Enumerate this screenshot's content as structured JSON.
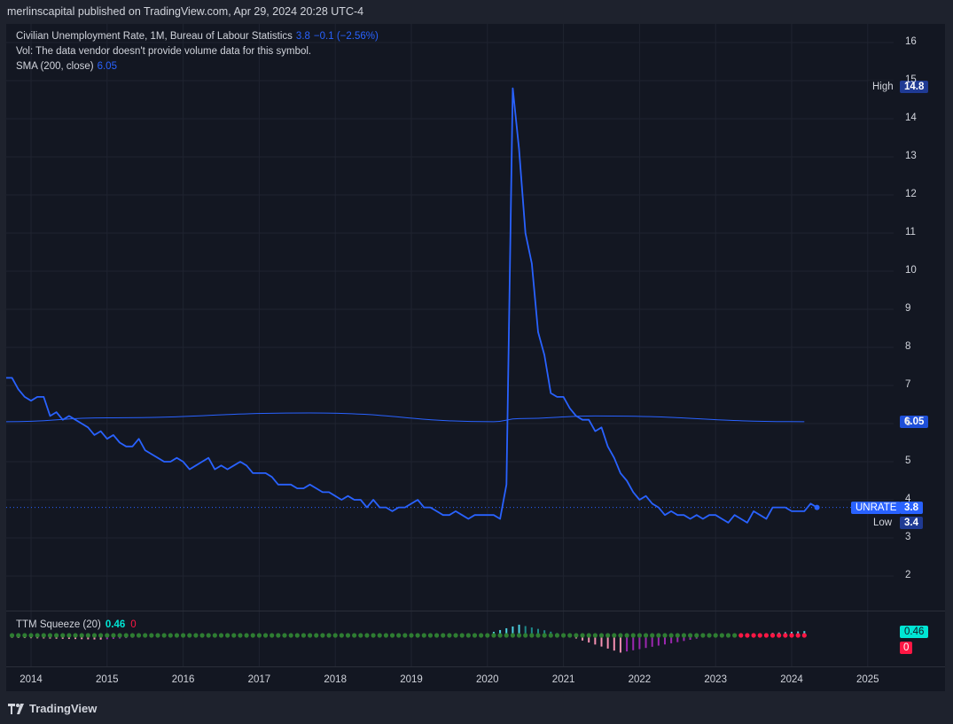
{
  "header": {
    "published": "merlinscapital published on TradingView.com, Apr 29, 2024 20:28 UTC-4"
  },
  "legend": {
    "title": "Civilian Unemployment Rate, 1M, Bureau of Labour Statistics",
    "last_value": "3.8",
    "change": "−0.1 (−2.56%)",
    "vol_note": "Vol: The data vendor doesn't provide volume data for this symbol.",
    "sma_label": "SMA (200, close)",
    "sma_value": "6.05",
    "ttm_label": "TTM Squeeze (20)",
    "ttm_value": "0.46",
    "ttm_value2": "0"
  },
  "tags": {
    "high_label": "High",
    "high_value": "14.8",
    "sma_value": "6.05",
    "symbol": "UNRATE",
    "symbol_value": "3.8",
    "low_label": "Low",
    "low_value": "3.4",
    "ttm_value": "0.46",
    "ttm_zero": "0"
  },
  "footer": {
    "brand": "TradingView"
  },
  "colors": {
    "line": "#2962ff",
    "background": "#131722",
    "grid": "#1f2330",
    "squeeze_on": "#ff1744",
    "squeeze_off": "#1b5e20",
    "mom_up": "#26a69a",
    "mom_down": "#e040fb"
  },
  "chart_data": {
    "type": "line",
    "title": "Civilian Unemployment Rate, 1M, Bureau of Labour Statistics",
    "ylim": [
      1,
      16.5
    ],
    "yticks": [
      2,
      3,
      4,
      5,
      6,
      7,
      8,
      9,
      10,
      11,
      12,
      13,
      14,
      15,
      16
    ],
    "xticks": [
      "2014",
      "2015",
      "2016",
      "2017",
      "2018",
      "2019",
      "2020",
      "2021",
      "2022",
      "2023",
      "2024",
      "2025"
    ],
    "grid": true,
    "series": [
      {
        "name": "UNRATE",
        "start": "2013-09",
        "frequency": "monthly",
        "values": [
          7.2,
          7.2,
          6.9,
          6.7,
          6.6,
          6.7,
          6.7,
          6.2,
          6.3,
          6.1,
          6.2,
          6.1,
          6.0,
          5.9,
          5.7,
          5.8,
          5.6,
          5.7,
          5.5,
          5.4,
          5.4,
          5.6,
          5.3,
          5.2,
          5.1,
          5.0,
          5.0,
          5.1,
          5.0,
          4.8,
          4.9,
          5.0,
          5.1,
          4.8,
          4.9,
          4.8,
          4.9,
          5.0,
          4.9,
          4.7,
          4.7,
          4.7,
          4.6,
          4.4,
          4.4,
          4.4,
          4.3,
          4.3,
          4.4,
          4.3,
          4.2,
          4.2,
          4.1,
          4.0,
          4.1,
          4.0,
          4.0,
          3.8,
          4.0,
          3.8,
          3.8,
          3.7,
          3.8,
          3.8,
          3.9,
          4.0,
          3.8,
          3.8,
          3.7,
          3.6,
          3.6,
          3.7,
          3.6,
          3.5,
          3.6,
          3.6,
          3.6,
          3.6,
          3.5,
          4.4,
          14.8,
          13.2,
          11.0,
          10.2,
          8.4,
          7.8,
          6.8,
          6.7,
          6.7,
          6.4,
          6.2,
          6.1,
          6.1,
          5.8,
          5.9,
          5.4,
          5.1,
          4.7,
          4.5,
          4.2,
          4.0,
          4.1,
          3.9,
          3.8,
          3.6,
          3.7,
          3.6,
          3.6,
          3.5,
          3.6,
          3.5,
          3.6,
          3.6,
          3.5,
          3.4,
          3.6,
          3.5,
          3.4,
          3.7,
          3.6,
          3.5,
          3.8,
          3.8,
          3.8,
          3.7,
          3.7,
          3.7,
          3.9,
          3.8
        ]
      },
      {
        "name": "SMA (200, close)",
        "points": [
          {
            "date": "2013-09",
            "value": 6.05
          },
          {
            "date": "2015-01",
            "value": 6.15
          },
          {
            "date": "2017-09",
            "value": 6.28
          },
          {
            "date": "2020-02",
            "value": 6.05
          },
          {
            "date": "2020-06",
            "value": 6.13
          },
          {
            "date": "2021-06",
            "value": 6.2
          },
          {
            "date": "2024-03",
            "value": 6.05
          }
        ]
      }
    ],
    "high": 14.8,
    "low": 3.4,
    "last": 3.8,
    "indicator": {
      "name": "TTM Squeeze (20)",
      "value": 0.46,
      "momentum_points": [
        {
          "date": "2013-09",
          "value": -0.25
        },
        {
          "date": "2014-12",
          "value": -0.45
        },
        {
          "date": "2015-09",
          "value": -0.1
        },
        {
          "date": "2019-12",
          "value": 0.0
        },
        {
          "date": "2020-06",
          "value": 1.15
        },
        {
          "date": "2021-01",
          "value": 0.1
        },
        {
          "date": "2021-10",
          "value": -1.85
        },
        {
          "date": "2022-12",
          "value": -0.1
        },
        {
          "date": "2024-03",
          "value": 0.46
        }
      ],
      "squeeze_on_from": "2023-05"
    }
  }
}
